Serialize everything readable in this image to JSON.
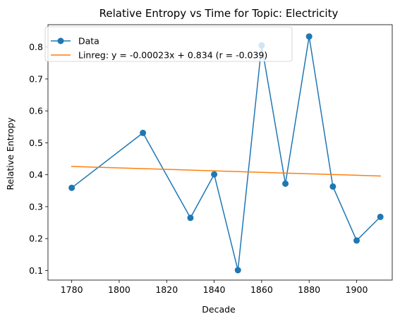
{
  "chart_data": {
    "type": "line",
    "title": "Relative Entropy vs Time for Topic: Electricity",
    "xlabel": "Decade",
    "ylabel": "Relative Entropy",
    "xlim": [
      1770,
      1915
    ],
    "ylim": [
      0.07,
      0.87
    ],
    "x_ticks": [
      1780,
      1800,
      1820,
      1840,
      1860,
      1880,
      1900
    ],
    "y_ticks": [
      0.1,
      0.2,
      0.3,
      0.4,
      0.5,
      0.6,
      0.7,
      0.8
    ],
    "x_tick_labels": [
      "1780",
      "1800",
      "1820",
      "1840",
      "1860",
      "1880",
      "1900"
    ],
    "y_tick_labels": [
      "0.1",
      "0.2",
      "0.3",
      "0.4",
      "0.5",
      "0.6",
      "0.7",
      "0.8"
    ],
    "grid": false,
    "legend_position": "top-left",
    "series": [
      {
        "name": "Data",
        "color": "#1f77b4",
        "marker": "circle",
        "x": [
          1780,
          1810,
          1830,
          1840,
          1850,
          1860,
          1870,
          1880,
          1890,
          1900,
          1910
        ],
        "y": [
          0.359,
          0.531,
          0.265,
          0.401,
          0.101,
          0.805,
          0.372,
          0.833,
          0.363,
          0.194,
          0.268
        ]
      },
      {
        "name": "Linreg: y = -0.00023x + 0.834 (r = -0.039)",
        "color": "#ff7f0e",
        "marker": "none",
        "x": [
          1780,
          1910
        ],
        "y": [
          0.426,
          0.396
        ]
      }
    ]
  }
}
